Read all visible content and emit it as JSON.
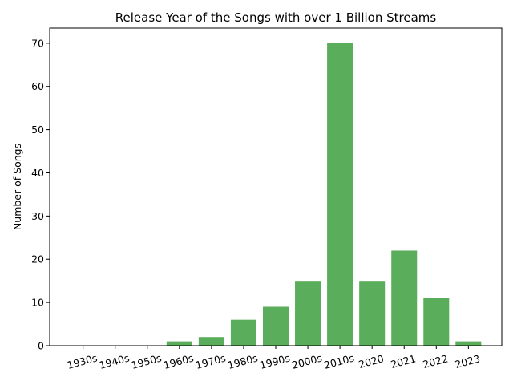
{
  "chart_data": {
    "type": "bar",
    "title": "Release Year of the Songs with over 1 Billion Streams",
    "xlabel": "",
    "ylabel": "Number of Songs",
    "categories": [
      "1930s",
      "1940s",
      "1950s",
      "1960s",
      "1970s",
      "1980s",
      "1990s",
      "2000s",
      "2010s",
      "2020",
      "2021",
      "2022",
      "2023"
    ],
    "values": [
      0,
      0,
      0,
      1,
      2,
      6,
      9,
      15,
      70,
      15,
      22,
      11,
      1
    ],
    "ylim": [
      0,
      73.5
    ],
    "yticks": [
      0,
      10,
      20,
      30,
      40,
      50,
      60,
      70
    ],
    "grid": false,
    "legend": "none",
    "colors": {
      "bar": "#5aad5a",
      "axis": "#000000",
      "background": "#ffffff"
    }
  }
}
